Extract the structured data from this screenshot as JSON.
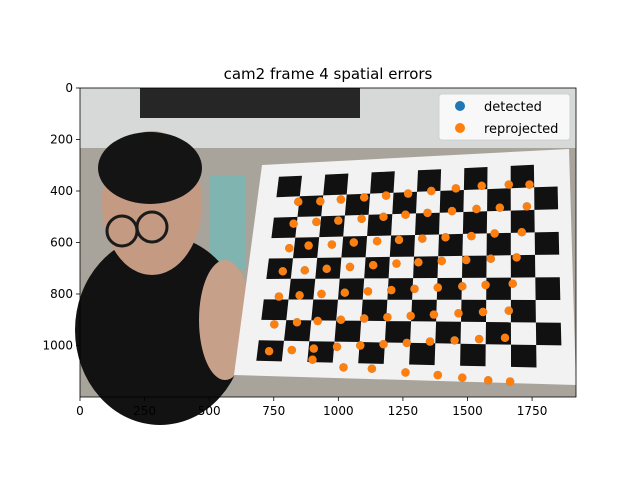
{
  "chart_data": {
    "type": "scatter",
    "title": "cam2 frame 4 spatial errors",
    "xlabel": "",
    "ylabel": "",
    "xlim": [
      0,
      1920
    ],
    "ylim": [
      1200,
      0
    ],
    "xticks": [
      0,
      250,
      500,
      750,
      1000,
      1250,
      1500,
      1750
    ],
    "yticks": [
      0,
      200,
      400,
      600,
      800,
      1000
    ],
    "background": "photo of a person holding a black-and-white checkerboard calibration target",
    "legend_position": "top-right",
    "grid": false,
    "series": [
      {
        "name": "detected",
        "color": "#1f77b4",
        "points": [
          [
            845,
            442
          ],
          [
            930,
            440
          ],
          [
            1010,
            433
          ],
          [
            1100,
            425
          ],
          [
            1185,
            418
          ],
          [
            1270,
            410
          ],
          [
            1360,
            400
          ],
          [
            1455,
            390
          ],
          [
            1555,
            380
          ],
          [
            1660,
            375
          ],
          [
            1740,
            375
          ],
          [
            827,
            527
          ],
          [
            915,
            520
          ],
          [
            1000,
            515
          ],
          [
            1090,
            508
          ],
          [
            1175,
            500
          ],
          [
            1260,
            492
          ],
          [
            1345,
            485
          ],
          [
            1440,
            478
          ],
          [
            1535,
            470
          ],
          [
            1625,
            465
          ],
          [
            1730,
            460
          ],
          [
            810,
            622
          ],
          [
            885,
            612
          ],
          [
            975,
            608
          ],
          [
            1060,
            600
          ],
          [
            1150,
            595
          ],
          [
            1235,
            590
          ],
          [
            1325,
            585
          ],
          [
            1415,
            580
          ],
          [
            1515,
            575
          ],
          [
            1605,
            565
          ],
          [
            1710,
            560
          ],
          [
            785,
            712
          ],
          [
            870,
            708
          ],
          [
            955,
            702
          ],
          [
            1045,
            695
          ],
          [
            1135,
            688
          ],
          [
            1225,
            682
          ],
          [
            1310,
            677
          ],
          [
            1400,
            672
          ],
          [
            1495,
            668
          ],
          [
            1590,
            663
          ],
          [
            1690,
            658
          ],
          [
            770,
            810
          ],
          [
            850,
            805
          ],
          [
            935,
            800
          ],
          [
            1025,
            795
          ],
          [
            1115,
            790
          ],
          [
            1205,
            785
          ],
          [
            1295,
            780
          ],
          [
            1385,
            775
          ],
          [
            1480,
            770
          ],
          [
            1570,
            765
          ],
          [
            1675,
            760
          ],
          [
            752,
            918
          ],
          [
            840,
            910
          ],
          [
            920,
            905
          ],
          [
            1010,
            900
          ],
          [
            1100,
            895
          ],
          [
            1190,
            890
          ],
          [
            1280,
            885
          ],
          [
            1370,
            880
          ],
          [
            1465,
            875
          ],
          [
            1560,
            870
          ],
          [
            1660,
            865
          ],
          [
            732,
            1022
          ],
          [
            820,
            1018
          ],
          [
            905,
            1012
          ],
          [
            995,
            1005
          ],
          [
            1085,
            1000
          ],
          [
            1175,
            995
          ],
          [
            1265,
            990
          ],
          [
            1355,
            985
          ],
          [
            1450,
            980
          ],
          [
            1545,
            975
          ],
          [
            1645,
            970
          ],
          [
            900,
            1055
          ],
          [
            1020,
            1085
          ],
          [
            1130,
            1090
          ],
          [
            1260,
            1105
          ],
          [
            1385,
            1115
          ],
          [
            1480,
            1125
          ],
          [
            1580,
            1135
          ],
          [
            1665,
            1140
          ]
        ]
      },
      {
        "name": "reprojected",
        "color": "#ff7f0e",
        "points": [
          [
            845,
            442
          ],
          [
            930,
            440
          ],
          [
            1010,
            433
          ],
          [
            1100,
            425
          ],
          [
            1185,
            418
          ],
          [
            1270,
            410
          ],
          [
            1360,
            400
          ],
          [
            1455,
            390
          ],
          [
            1555,
            380
          ],
          [
            1660,
            375
          ],
          [
            1740,
            375
          ],
          [
            827,
            527
          ],
          [
            915,
            520
          ],
          [
            1000,
            515
          ],
          [
            1090,
            508
          ],
          [
            1175,
            500
          ],
          [
            1260,
            492
          ],
          [
            1345,
            485
          ],
          [
            1440,
            478
          ],
          [
            1535,
            470
          ],
          [
            1625,
            465
          ],
          [
            1730,
            460
          ],
          [
            810,
            622
          ],
          [
            885,
            612
          ],
          [
            975,
            608
          ],
          [
            1060,
            600
          ],
          [
            1150,
            595
          ],
          [
            1235,
            590
          ],
          [
            1325,
            585
          ],
          [
            1415,
            580
          ],
          [
            1515,
            575
          ],
          [
            1605,
            565
          ],
          [
            1710,
            560
          ],
          [
            785,
            712
          ],
          [
            870,
            708
          ],
          [
            955,
            702
          ],
          [
            1045,
            695
          ],
          [
            1135,
            688
          ],
          [
            1225,
            682
          ],
          [
            1310,
            677
          ],
          [
            1400,
            672
          ],
          [
            1495,
            668
          ],
          [
            1590,
            663
          ],
          [
            1690,
            658
          ],
          [
            770,
            810
          ],
          [
            850,
            805
          ],
          [
            935,
            800
          ],
          [
            1025,
            795
          ],
          [
            1115,
            790
          ],
          [
            1205,
            785
          ],
          [
            1295,
            780
          ],
          [
            1385,
            775
          ],
          [
            1480,
            770
          ],
          [
            1570,
            765
          ],
          [
            1675,
            760
          ],
          [
            752,
            918
          ],
          [
            840,
            910
          ],
          [
            920,
            905
          ],
          [
            1010,
            900
          ],
          [
            1100,
            895
          ],
          [
            1190,
            890
          ],
          [
            1280,
            885
          ],
          [
            1370,
            880
          ],
          [
            1465,
            875
          ],
          [
            1560,
            870
          ],
          [
            1660,
            865
          ],
          [
            732,
            1022
          ],
          [
            820,
            1018
          ],
          [
            905,
            1012
          ],
          [
            995,
            1005
          ],
          [
            1085,
            1000
          ],
          [
            1175,
            995
          ],
          [
            1265,
            990
          ],
          [
            1355,
            985
          ],
          [
            1450,
            980
          ],
          [
            1545,
            975
          ],
          [
            1645,
            970
          ],
          [
            900,
            1055
          ],
          [
            1020,
            1085
          ],
          [
            1130,
            1090
          ],
          [
            1260,
            1105
          ],
          [
            1385,
            1115
          ],
          [
            1480,
            1125
          ],
          [
            1580,
            1135
          ],
          [
            1665,
            1140
          ]
        ]
      }
    ]
  }
}
